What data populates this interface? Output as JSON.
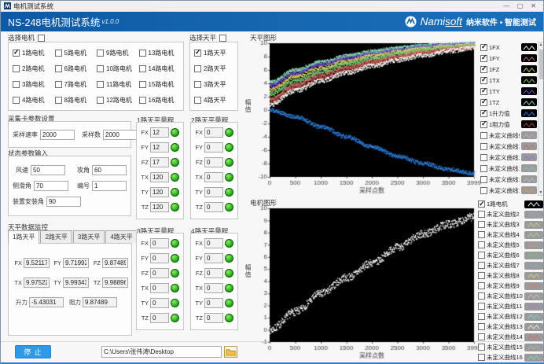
{
  "window": {
    "title": "电机测试系统",
    "min": "—",
    "max": "▢",
    "close": "✕"
  },
  "header": {
    "title": "NS-248电机测试系统",
    "version": "v1.0.0",
    "brand_head": "Nami",
    "brand_tail": "soft",
    "tagline": "纳米软件 • 智能测试"
  },
  "motor_select": {
    "label": "选择电机",
    "select_all_checked": false,
    "items": [
      {
        "label": "1路电机",
        "checked": true
      },
      {
        "label": "2路电机",
        "checked": false
      },
      {
        "label": "3路电机",
        "checked": false
      },
      {
        "label": "4路电机",
        "checked": false
      },
      {
        "label": "5路电机",
        "checked": false
      },
      {
        "label": "6路电机",
        "checked": false
      },
      {
        "label": "7路电机",
        "checked": false
      },
      {
        "label": "8路电机",
        "checked": false
      },
      {
        "label": "9路电机",
        "checked": false
      },
      {
        "label": "10路电机",
        "checked": false
      },
      {
        "label": "11路电机",
        "checked": false
      },
      {
        "label": "12路电机",
        "checked": false
      },
      {
        "label": "13路电机",
        "checked": false
      },
      {
        "label": "14路电机",
        "checked": false
      },
      {
        "label": "15路电机",
        "checked": false
      },
      {
        "label": "16路电机",
        "checked": false
      }
    ]
  },
  "balance_select": {
    "label": "选择天平",
    "select_all_checked": false,
    "items": [
      {
        "label": "1路天平",
        "checked": true
      },
      {
        "label": "2路天平",
        "checked": false
      },
      {
        "label": "3路天平",
        "checked": false
      },
      {
        "label": "4路天平",
        "checked": false
      }
    ]
  },
  "daq": {
    "title": "采集卡参数设置",
    "fields": [
      {
        "label": "采样速率",
        "value": "2000"
      },
      {
        "label": "采样数",
        "value": "2000"
      }
    ]
  },
  "status_params": {
    "title": "状态参数输入",
    "rows": [
      [
        {
          "label": "风速",
          "value": "50"
        },
        {
          "label": "攻角",
          "value": "60"
        }
      ],
      [
        {
          "label": "侧滑角",
          "value": "70"
        },
        {
          "label": "编号",
          "value": "1"
        }
      ],
      [
        {
          "label": "装置安装角",
          "value": "90"
        }
      ]
    ]
  },
  "balance_monitor": {
    "title": "天平数据监控",
    "tabs": [
      {
        "label": "1路天平",
        "active": true
      },
      {
        "label": "2路天平",
        "active": false
      },
      {
        "label": "3路天平",
        "active": false
      },
      {
        "label": "4路天平",
        "active": false
      }
    ],
    "rows": [
      [
        {
          "label": "FX",
          "value": "9.52117"
        },
        {
          "label": "FY",
          "value": "9.71992"
        },
        {
          "label": "FZ",
          "value": "9.87489"
        }
      ],
      [
        {
          "label": "TX",
          "value": "9.97522"
        },
        {
          "label": "TY",
          "value": "9.99343"
        },
        {
          "label": "TZ",
          "value": "9.98896"
        }
      ],
      [
        {
          "label": "升力",
          "value": "-5.43031"
        },
        {
          "label": "阻力",
          "value": "9.87489"
        }
      ]
    ]
  },
  "ranges": [
    {
      "title": "1路天平量程",
      "fields": [
        {
          "label": "FX",
          "value": "12"
        },
        {
          "label": "FY",
          "value": "12"
        },
        {
          "label": "FZ",
          "value": "17"
        },
        {
          "label": "TX",
          "value": "120"
        },
        {
          "label": "TY",
          "value": "120"
        },
        {
          "label": "TZ",
          "value": "120"
        }
      ]
    },
    {
      "title": "2路天平量程",
      "fields": [
        {
          "label": "FX",
          "value": "0"
        },
        {
          "label": "FY",
          "value": "0"
        },
        {
          "label": "FZ",
          "value": "0"
        },
        {
          "label": "TX",
          "value": "0"
        },
        {
          "label": "TY",
          "value": "0"
        },
        {
          "label": "TZ",
          "value": "0"
        }
      ]
    },
    {
      "title": "3路天平量程",
      "fields": [
        {
          "label": "FX",
          "value": "0"
        },
        {
          "label": "FY",
          "value": "0"
        },
        {
          "label": "FZ",
          "value": "0"
        },
        {
          "label": "TX",
          "value": "0"
        },
        {
          "label": "TY",
          "value": "0"
        },
        {
          "label": "TZ",
          "value": "0"
        }
      ]
    },
    {
      "title": "4路天平量程",
      "fields": [
        {
          "label": "FX",
          "value": "0"
        },
        {
          "label": "FY",
          "value": "0"
        },
        {
          "label": "FZ",
          "value": "0"
        },
        {
          "label": "TX",
          "value": "0"
        },
        {
          "label": "TY",
          "value": "0"
        },
        {
          "label": "TZ",
          "value": "0"
        }
      ]
    }
  ],
  "footer": {
    "stop_label": "停 止",
    "path": "C:\\Users\\张伟涛\\Desktop"
  },
  "balance_chart": {
    "title": "天平图形",
    "legend": [
      {
        "label": "1FX",
        "checked": true,
        "color": "#ffffff"
      },
      {
        "label": "1FY",
        "checked": true,
        "color": "#cf7a6e"
      },
      {
        "label": "1FZ",
        "checked": true,
        "color": "#d9d35f"
      },
      {
        "label": "1TX",
        "checked": true,
        "color": "#74d177"
      },
      {
        "label": "1TY",
        "checked": true,
        "color": "#7a50d8"
      },
      {
        "label": "1TZ",
        "checked": true,
        "color": "#8fe3c3"
      },
      {
        "label": "1升力值",
        "checked": true,
        "color": "#2f7fe0"
      },
      {
        "label": "1阻力值",
        "checked": true,
        "color": "#b0493e"
      },
      {
        "label": "未定义曲线9",
        "checked": false,
        "color": "#caa6c0"
      },
      {
        "label": "未定义曲线10",
        "checked": false,
        "color": "#c56a6a"
      },
      {
        "label": "未定义曲线11",
        "checked": false,
        "color": "#9a6ad8"
      },
      {
        "label": "未定义曲线12",
        "checked": false,
        "color": "#7fc8c8"
      },
      {
        "label": "未定义曲线13",
        "checked": false,
        "color": "#bdbdbd"
      },
      {
        "label": "未定义曲线14",
        "checked": false,
        "color": "#d8a05f"
      }
    ],
    "chart_data": {
      "type": "line",
      "title": "天平图形",
      "xlabel": "采样点数",
      "ylabel": "幅值",
      "xlim": [
        0,
        3999
      ],
      "ylim": [
        -10,
        10
      ],
      "xticks": [
        0,
        500,
        1000,
        1500,
        2000,
        2500,
        3000,
        3500,
        3999
      ],
      "yticks": [
        10,
        8,
        6,
        4,
        2,
        0,
        -2,
        -4,
        -6,
        -8,
        -10
      ],
      "plot_bg": "#000000",
      "x": [
        0,
        500,
        1000,
        1500,
        2000,
        2500,
        3000,
        3500,
        3999
      ],
      "series": [
        {
          "name": "1TZ",
          "color": "#8fe3c3",
          "noise": 0.26,
          "values": [
            4.2,
            6.0,
            7.2,
            8.1,
            8.8,
            9.3,
            9.65,
            9.85,
            10.0
          ]
        },
        {
          "name": "1TY",
          "color": "#7a50d8",
          "noise": 0.26,
          "values": [
            3.6,
            5.5,
            6.8,
            7.7,
            8.4,
            8.95,
            9.4,
            9.7,
            9.9
          ]
        },
        {
          "name": "1FZ",
          "color": "#d9d35f",
          "noise": 0.26,
          "values": [
            3.0,
            5.0,
            6.3,
            7.3,
            8.1,
            8.7,
            9.2,
            9.55,
            9.8
          ]
        },
        {
          "name": "1TX",
          "color": "#74d177",
          "noise": 0.26,
          "values": [
            2.4,
            4.4,
            5.8,
            6.9,
            7.7,
            8.4,
            8.95,
            9.4,
            9.7
          ]
        },
        {
          "name": "1FY",
          "color": "#cf7a6e",
          "noise": 0.26,
          "values": [
            1.7,
            3.8,
            5.3,
            6.4,
            7.3,
            8.05,
            8.7,
            9.2,
            9.5
          ]
        },
        {
          "name": "1阻力值",
          "color": "#b0493e",
          "noise": 0.26,
          "values": [
            1.2,
            3.3,
            4.8,
            6.0,
            7.0,
            7.8,
            8.5,
            9.0,
            9.4
          ]
        },
        {
          "name": "1FX",
          "color": "#ffffff",
          "noise": 0.34,
          "values": [
            0.8,
            2.9,
            4.4,
            5.6,
            6.6,
            7.5,
            8.2,
            8.85,
            9.3
          ]
        },
        {
          "name": "1升力值",
          "color": "#2f7fe0",
          "noise": 0.3,
          "values": [
            0.0,
            -1.0,
            -2.5,
            -4.0,
            -5.5,
            -6.9,
            -8.0,
            -8.9,
            -9.5
          ]
        }
      ]
    }
  },
  "motor_chart": {
    "title": "电机图形",
    "legend": [
      {
        "label": "1路电机",
        "checked": true,
        "color": "#ffffff"
      },
      {
        "label": "未定义曲线2",
        "checked": false,
        "color": "#9aa6c8"
      },
      {
        "label": "未定义曲线3",
        "checked": false,
        "color": "#cfcf8a"
      },
      {
        "label": "未定义曲线4",
        "checked": false,
        "color": "#9ed49e"
      },
      {
        "label": "未定义曲线5",
        "checked": false,
        "color": "#d08f8f"
      },
      {
        "label": "未定义曲线6",
        "checked": false,
        "color": "#74c874"
      },
      {
        "label": "未定义曲线7",
        "checked": false,
        "color": "#8fa8d8"
      },
      {
        "label": "未定义曲线8",
        "checked": false,
        "color": "#d8d06a"
      },
      {
        "label": "未定义曲线9",
        "checked": false,
        "color": "#d07a6a"
      },
      {
        "label": "未定义曲线10",
        "checked": false,
        "color": "#c0c0c0"
      },
      {
        "label": "未定义曲线11",
        "checked": false,
        "color": "#a57ad0"
      },
      {
        "label": "未定义曲线12",
        "checked": false,
        "color": "#7fd0d0"
      },
      {
        "label": "未定义曲线13",
        "checked": false,
        "color": "#e8e8e8"
      },
      {
        "label": "未定义曲线14",
        "checked": false,
        "color": "#d06a6a"
      },
      {
        "label": "未定义曲线15",
        "checked": false,
        "color": "#b0b0b0"
      },
      {
        "label": "未定义曲线16",
        "checked": false,
        "color": "#7fd8b8"
      }
    ],
    "chart_data": {
      "type": "line",
      "title": "电机图形",
      "xlabel": "采样点数",
      "ylabel": "幅值",
      "xlim": [
        0,
        3999
      ],
      "ylim": [
        -1,
        10
      ],
      "xticks": [
        0,
        500,
        1000,
        1500,
        2000,
        2500,
        3000,
        3500,
        3999
      ],
      "yticks": [
        10,
        9,
        8,
        7,
        6,
        5,
        4,
        3,
        2,
        1,
        0,
        -1
      ],
      "plot_bg": "#000000",
      "x": [
        0,
        500,
        1000,
        1500,
        2000,
        2500,
        3000,
        3500,
        3999
      ],
      "series": [
        {
          "name": "1路电机",
          "color": "#ffffff",
          "noise": 0.32,
          "values": [
            0.0,
            1.5,
            3.0,
            4.3,
            5.5,
            6.8,
            7.9,
            8.7,
            9.3
          ]
        }
      ]
    }
  }
}
